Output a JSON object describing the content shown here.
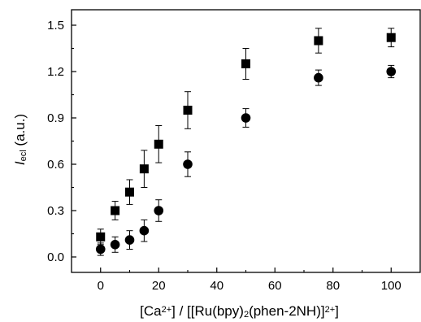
{
  "chart_data": {
    "type": "scatter",
    "xlabel": {
      "parts": [
        {
          "t": "[Ca",
          "s": "n"
        },
        {
          "t": "2+",
          "s": "sup"
        },
        {
          "t": "] / [[Ru(bpy)",
          "s": "n"
        },
        {
          "t": "2",
          "s": "sub"
        },
        {
          "t": "(phen-2NH)]",
          "s": "n"
        },
        {
          "t": "2+",
          "s": "sup"
        },
        {
          "t": "]",
          "s": "n"
        }
      ]
    },
    "ylabel": {
      "parts": [
        {
          "t": "I",
          "s": "it"
        },
        {
          "t": "ecl",
          "s": "sub"
        },
        {
          "t": " (a.u.)",
          "s": "n"
        }
      ]
    },
    "xlim": [
      -10,
      110
    ],
    "ylim": [
      -0.1,
      1.6
    ],
    "x_ticks": [
      0,
      20,
      40,
      60,
      80,
      100
    ],
    "x_tick_labels": [
      "0",
      "20",
      "40",
      "60",
      "80",
      "100"
    ],
    "y_ticks": [
      0.0,
      0.3,
      0.6,
      0.9,
      1.2,
      1.5
    ],
    "y_tick_labels": [
      "0.0",
      "0.3",
      "0.6",
      "0.9",
      "1.2",
      "1.5"
    ],
    "grid": false,
    "legend": "none",
    "series": [
      {
        "marker": "square",
        "color": "#000000",
        "x": [
          0,
          5,
          10,
          15,
          20,
          30,
          50,
          75,
          100
        ],
        "y": [
          0.13,
          0.3,
          0.42,
          0.57,
          0.73,
          0.95,
          1.25,
          1.4,
          1.42
        ],
        "err": [
          0.05,
          0.06,
          0.08,
          0.12,
          0.12,
          0.12,
          0.1,
          0.08,
          0.06
        ]
      },
      {
        "marker": "circle",
        "color": "#000000",
        "x": [
          0,
          5,
          10,
          15,
          20,
          30,
          50,
          75,
          100
        ],
        "y": [
          0.05,
          0.08,
          0.11,
          0.17,
          0.3,
          0.6,
          0.9,
          1.16,
          1.2
        ],
        "err": [
          0.04,
          0.05,
          0.06,
          0.07,
          0.07,
          0.08,
          0.06,
          0.05,
          0.04
        ]
      }
    ]
  }
}
